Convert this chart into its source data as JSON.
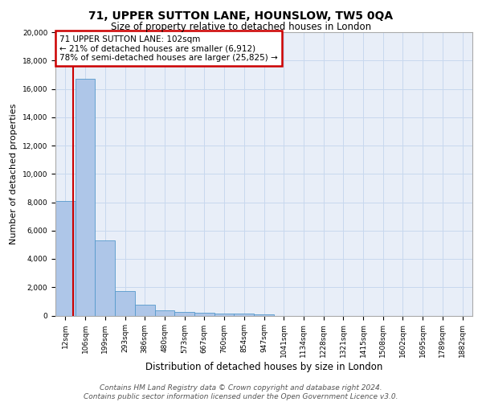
{
  "title": "71, UPPER SUTTON LANE, HOUNSLOW, TW5 0QA",
  "subtitle": "Size of property relative to detached houses in London",
  "xlabel": "Distribution of detached houses by size in London",
  "ylabel": "Number of detached properties",
  "bin_labels": [
    "12sqm",
    "106sqm",
    "199sqm",
    "293sqm",
    "386sqm",
    "480sqm",
    "573sqm",
    "667sqm",
    "760sqm",
    "854sqm",
    "947sqm",
    "1041sqm",
    "1134sqm",
    "1228sqm",
    "1321sqm",
    "1415sqm",
    "1508sqm",
    "1602sqm",
    "1695sqm",
    "1789sqm",
    "1882sqm"
  ],
  "bar_heights": [
    8100,
    16700,
    5300,
    1750,
    750,
    350,
    250,
    200,
    150,
    130,
    80,
    0,
    0,
    0,
    0,
    0,
    0,
    0,
    0,
    0,
    0
  ],
  "bar_color": "#aec6e8",
  "bar_edge_color": "#5599cc",
  "background_color": "#e8eef8",
  "grid_color": "#c8d8ee",
  "property_line_color": "#cc0000",
  "property_line_index": 0.9,
  "annotation_text": "71 UPPER SUTTON LANE: 102sqm\n← 21% of detached houses are smaller (6,912)\n78% of semi-detached houses are larger (25,825) →",
  "annotation_box_color": "#ffffff",
  "annotation_box_edge_color": "#cc0000",
  "ylim": [
    0,
    20000
  ],
  "yticks": [
    0,
    2000,
    4000,
    6000,
    8000,
    10000,
    12000,
    14000,
    16000,
    18000,
    20000
  ],
  "footer_text": "Contains HM Land Registry data © Crown copyright and database right 2024.\nContains public sector information licensed under the Open Government Licence v3.0.",
  "title_fontsize": 10,
  "subtitle_fontsize": 8.5,
  "ylabel_fontsize": 8,
  "xlabel_fontsize": 8.5,
  "tick_fontsize": 6.5,
  "annotation_fontsize": 7.5,
  "footer_fontsize": 6.5
}
